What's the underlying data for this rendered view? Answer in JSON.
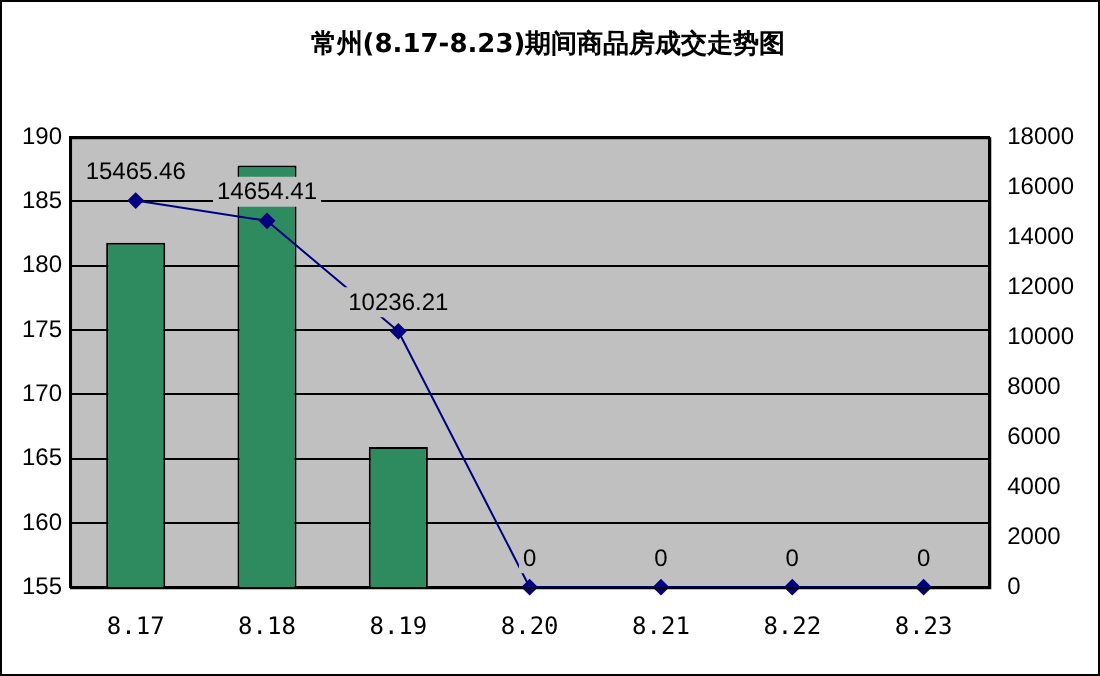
{
  "chart_data": {
    "type": "bar",
    "title": "常州(8.17-8.23)期间商品房成交走势图",
    "categories": [
      "8.17",
      "8.18",
      "8.19",
      "8.20",
      "8.21",
      "8.22",
      "8.23"
    ],
    "series": [
      {
        "color": "#2e8b5f",
        "values": [
          181.8,
          187.8,
          165.9,
          null,
          null,
          null,
          null
        ]
      },
      {
        "type": "line",
        "axis": "y2",
        "color": "#000080",
        "values": [
          15465.46,
          14654.41,
          10236.21,
          0,
          0,
          0,
          0
        ],
        "value_labels": [
          "15465.46",
          "14654.41",
          "10236.21",
          "0",
          "0",
          "0",
          "0"
        ]
      }
    ],
    "ylim": [
      155,
      190
    ],
    "yticks": [
      155,
      160,
      165,
      170,
      175,
      180,
      185,
      190
    ],
    "y2lim": [
      0,
      18000
    ],
    "y2ticks": [
      0,
      2000,
      4000,
      6000,
      8000,
      10000,
      12000,
      14000,
      16000,
      18000
    ],
    "grid": "y",
    "marker": "diamond",
    "line_style": "solid",
    "legend": false
  }
}
